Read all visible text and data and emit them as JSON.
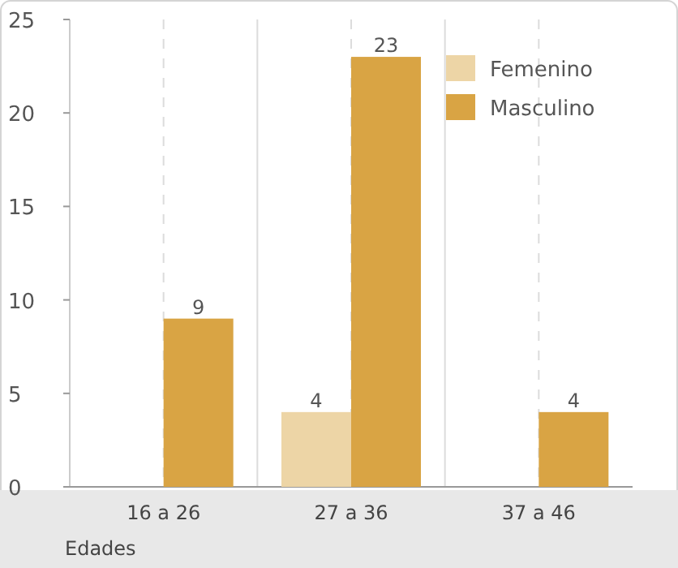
{
  "chart_data": {
    "type": "bar",
    "xlabel": "Edades",
    "categories": [
      "16 a 26",
      "27 a 36",
      "37 a 46"
    ],
    "series": [
      {
        "name": "Femenino",
        "color": "#edd5a6",
        "values": [
          null,
          4,
          null
        ]
      },
      {
        "name": "Masculino",
        "color": "#d9a444",
        "values": [
          9,
          23,
          4
        ]
      }
    ],
    "ylim": [
      0,
      25
    ],
    "yticks": [
      0,
      5,
      10,
      15,
      20,
      25
    ],
    "grid": "x",
    "legend": "top right",
    "data_labels": true
  }
}
